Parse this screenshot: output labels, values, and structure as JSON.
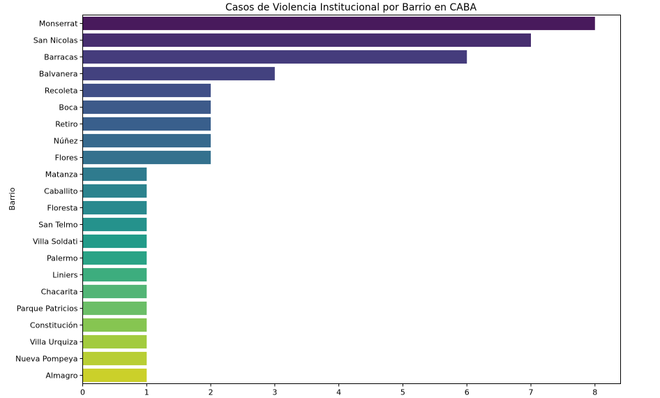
{
  "chart_data": {
    "type": "bar",
    "orientation": "horizontal",
    "title": "Casos de Violencia Institucional por Barrio en CABA",
    "xlabel": "",
    "ylabel": "Barrio",
    "xlim": [
      0,
      8.4
    ],
    "xticks": [
      "0",
      "1",
      "2",
      "3",
      "4",
      "5",
      "6",
      "7",
      "8"
    ],
    "grid": false,
    "categories": [
      "Monserrat",
      "San Nicolas",
      "Barracas",
      "Balvanera",
      "Recoleta",
      "Boca",
      "Retiro",
      "Núñez",
      "Flores",
      "Matanza",
      "Caballito",
      "Floresta",
      "San Telmo",
      "Villa Soldati",
      "Palermo",
      "Liniers",
      "Chacarita",
      "Parque Patricios",
      "Constitución",
      "Villa Urquiza",
      "Nueva Pompeya",
      "Almagro"
    ],
    "values": [
      8,
      7,
      6,
      3,
      2,
      2,
      2,
      2,
      2,
      1,
      1,
      1,
      1,
      1,
      1,
      1,
      1,
      1,
      1,
      1,
      1,
      1
    ],
    "colors": [
      "#481a5c",
      "#472e6f",
      "#453c7c",
      "#43427f",
      "#404f87",
      "#3d5a8a",
      "#395f8c",
      "#37698d",
      "#34718e",
      "#2f7b8e",
      "#2c838e",
      "#29898e",
      "#25928c",
      "#229b89",
      "#2aa386",
      "#3dad7e",
      "#52b576",
      "#6bbe67",
      "#86c551",
      "#a2cb3e",
      "#b8ce34",
      "#cbd02a"
    ]
  }
}
